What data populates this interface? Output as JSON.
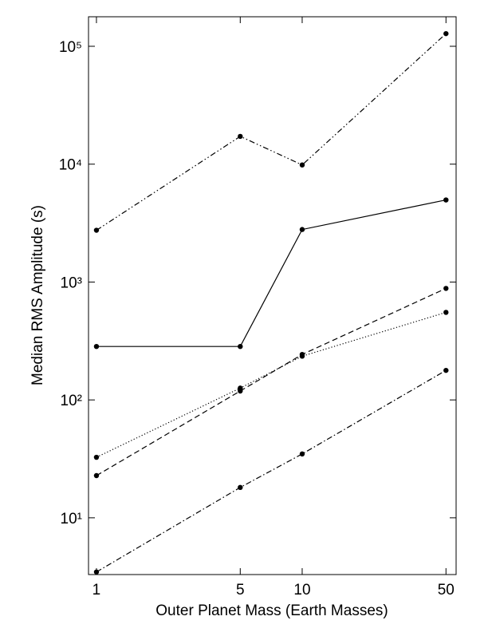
{
  "chart_data": {
    "type": "line",
    "xlabel": "Outer Planet Mass (Earth Masses)",
    "ylabel": "Median RMS Amplitude (s)",
    "x": [
      1,
      5,
      10,
      50
    ],
    "xscale": "log",
    "yscale": "log",
    "xlim": [
      0.915,
      56
    ],
    "ylim": [
      3.3,
      178000
    ],
    "xticks": [
      1,
      5,
      10,
      50
    ],
    "yticks": [
      {
        "value": 10,
        "label": "10¹"
      },
      {
        "value": 100,
        "label": "10²"
      },
      {
        "value": 1000,
        "label": "10³"
      },
      {
        "value": 10000,
        "label": "10⁴"
      },
      {
        "value": 100000,
        "label": "10⁵"
      }
    ],
    "grid": false,
    "series": [
      {
        "color": "#000000",
        "style": "dashdotdot",
        "values": [
          2750,
          17200,
          9850,
          128000
        ]
      },
      {
        "color": "#000000",
        "style": "solid",
        "values": [
          284,
          284,
          2790,
          4970
        ]
      },
      {
        "color": "#000000",
        "style": "dashed",
        "values": [
          22.8,
          119,
          243,
          883
        ]
      },
      {
        "color": "#000000",
        "style": "dotted",
        "values": [
          32.6,
          126,
          235,
          553
        ]
      },
      {
        "color": "#000000",
        "style": "dashdot",
        "values": [
          3.47,
          18.1,
          34.8,
          178
        ]
      }
    ]
  }
}
